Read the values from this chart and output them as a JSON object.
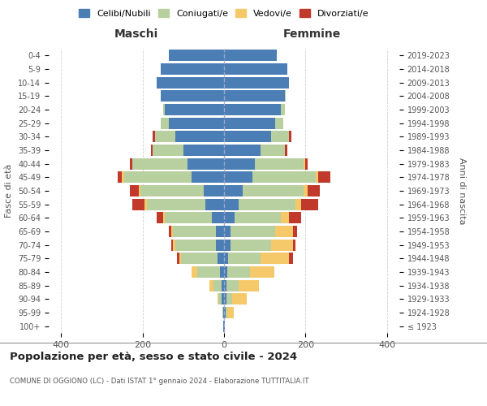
{
  "age_groups": [
    "100+",
    "95-99",
    "90-94",
    "85-89",
    "80-84",
    "75-79",
    "70-74",
    "65-69",
    "60-64",
    "55-59",
    "50-54",
    "45-49",
    "40-44",
    "35-39",
    "30-34",
    "25-29",
    "20-24",
    "15-19",
    "10-14",
    "5-9",
    "0-4"
  ],
  "birth_years": [
    "≤ 1923",
    "1924-1928",
    "1929-1933",
    "1934-1938",
    "1939-1943",
    "1944-1948",
    "1949-1953",
    "1954-1958",
    "1959-1963",
    "1964-1968",
    "1969-1973",
    "1974-1978",
    "1979-1983",
    "1984-1988",
    "1989-1993",
    "1994-1998",
    "1999-2003",
    "2004-2008",
    "2009-2013",
    "2014-2018",
    "2019-2023"
  ],
  "male": {
    "celibi": [
      2,
      2,
      5,
      5,
      10,
      15,
      20,
      20,
      30,
      45,
      50,
      80,
      90,
      100,
      120,
      135,
      145,
      155,
      165,
      155,
      135
    ],
    "coniugati": [
      0,
      2,
      8,
      20,
      55,
      90,
      100,
      105,
      115,
      145,
      155,
      165,
      135,
      75,
      50,
      20,
      5,
      0,
      0,
      0,
      0
    ],
    "vedovi": [
      0,
      0,
      2,
      10,
      15,
      5,
      5,
      5,
      5,
      5,
      5,
      5,
      0,
      0,
      0,
      0,
      0,
      0,
      0,
      0,
      0
    ],
    "divorziati": [
      0,
      0,
      0,
      0,
      0,
      5,
      5,
      5,
      15,
      30,
      20,
      10,
      5,
      5,
      5,
      0,
      0,
      0,
      0,
      0,
      0
    ]
  },
  "female": {
    "nubili": [
      2,
      3,
      5,
      5,
      8,
      10,
      15,
      15,
      25,
      35,
      45,
      70,
      75,
      90,
      115,
      125,
      140,
      150,
      160,
      155,
      130
    ],
    "coniugate": [
      0,
      5,
      15,
      30,
      55,
      80,
      100,
      110,
      115,
      140,
      150,
      155,
      120,
      60,
      45,
      20,
      10,
      2,
      0,
      0,
      0
    ],
    "vedove": [
      0,
      15,
      35,
      50,
      60,
      70,
      55,
      45,
      20,
      15,
      10,
      5,
      5,
      0,
      0,
      0,
      0,
      0,
      0,
      0,
      0
    ],
    "divorziate": [
      0,
      0,
      0,
      0,
      0,
      10,
      5,
      10,
      30,
      40,
      30,
      30,
      5,
      5,
      5,
      0,
      0,
      0,
      0,
      0,
      0
    ]
  },
  "colors": {
    "celibi": "#4a7eb5",
    "coniugati": "#b8cfa0",
    "vedovi": "#f5c96a",
    "divorziati": "#c0392b"
  },
  "title": "Popolazione per età, sesso e stato civile - 2024",
  "subtitle": "COMUNE DI OGGIONO (LC) - Dati ISTAT 1° gennaio 2024 - Elaborazione TUTTITALIA.IT",
  "xlabel_left": "Maschi",
  "xlabel_right": "Femmine",
  "ylabel_left": "Fasce di età",
  "ylabel_right": "Anni di nascita",
  "xlim": 430,
  "background_color": "#ffffff",
  "grid_color": "#cccccc",
  "legend_labels": [
    "Celibi/Nubili",
    "Coniugati/e",
    "Vedovi/e",
    "Divorziati/e"
  ]
}
